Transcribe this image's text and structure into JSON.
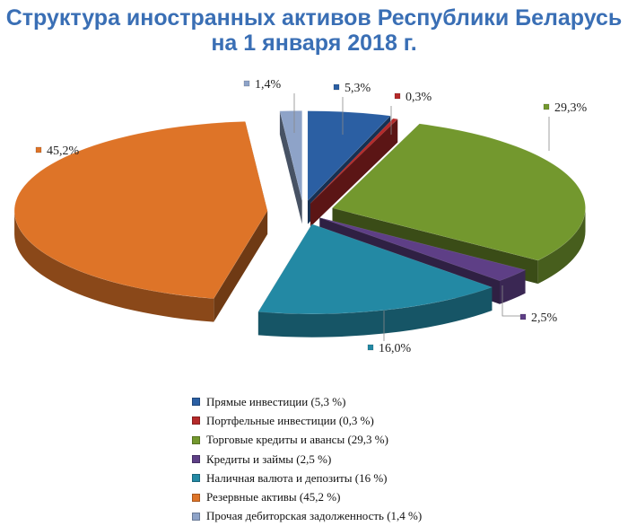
{
  "title": {
    "line1": "Структура иностранных активов Республики Беларусь",
    "line2": "на 1 января 2018 г."
  },
  "chart_data": {
    "type": "pie",
    "style": "3d-exploded",
    "series": [
      {
        "name": "Прямые инвестиции",
        "value": 5.3,
        "data_label": "5,3%",
        "legend_label": "Прямые инвестиции (5,3 %)",
        "color": "#2b5fa3"
      },
      {
        "name": "Портфельные инвестиции",
        "value": 0.3,
        "data_label": "0,3%",
        "legend_label": "Портфельные инвестиции (0,3 %)",
        "color": "#b52a2a"
      },
      {
        "name": "Торговые кредиты и авансы",
        "value": 29.3,
        "data_label": "29,3%",
        "legend_label": "Торговые кредиты и авансы (29,3 %)",
        "color": "#73982e"
      },
      {
        "name": "Кредиты и займы",
        "value": 2.5,
        "data_label": "2,5%",
        "legend_label": "Кредиты и займы (2,5 %)",
        "color": "#5e3f86"
      },
      {
        "name": "Наличная валюта и депозиты",
        "value": 16.0,
        "data_label": "16,0%",
        "legend_label": "Наличная валюта и депозиты (16 %)",
        "color": "#2389a4"
      },
      {
        "name": "Резервные активы",
        "value": 45.2,
        "data_label": "45,2%",
        "legend_label": "Резервные активы (45,2 %)",
        "color": "#de7428"
      },
      {
        "name": "Прочая дебиторская задолженность",
        "value": 1.4,
        "data_label": "1,4%",
        "legend_label": "Прочая дебиторская задолженность (1,4 %)",
        "color": "#8ea3c8"
      }
    ],
    "legend_position": "bottom"
  }
}
